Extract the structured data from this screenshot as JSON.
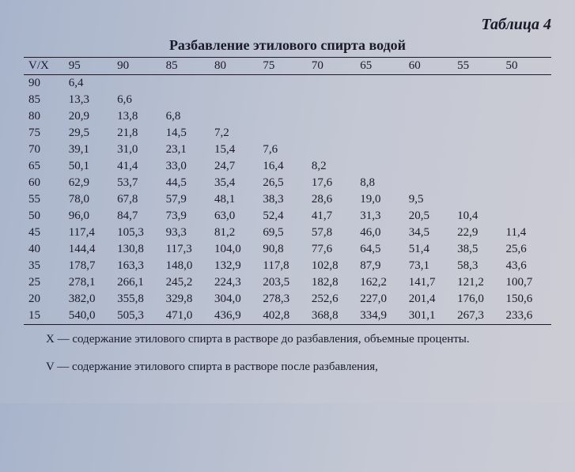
{
  "table_number": "Таблица 4",
  "title": "Разбавление этилового спирта водой",
  "corner_label": "V/X",
  "columns": [
    "95",
    "90",
    "85",
    "80",
    "75",
    "70",
    "65",
    "60",
    "55",
    "50"
  ],
  "rows": [
    {
      "label": "90",
      "cells": [
        "6,4",
        "",
        "",
        "",
        "",
        "",
        "",
        "",
        "",
        ""
      ]
    },
    {
      "label": "85",
      "cells": [
        "13,3",
        "6,6",
        "",
        "",
        "",
        "",
        "",
        "",
        "",
        ""
      ]
    },
    {
      "label": "80",
      "cells": [
        "20,9",
        "13,8",
        "6,8",
        "",
        "",
        "",
        "",
        "",
        "",
        ""
      ]
    },
    {
      "label": "75",
      "cells": [
        "29,5",
        "21,8",
        "14,5",
        "7,2",
        "",
        "",
        "",
        "",
        "",
        ""
      ]
    },
    {
      "label": "70",
      "cells": [
        "39,1",
        "31,0",
        "23,1",
        "15,4",
        "7,6",
        "",
        "",
        "",
        "",
        ""
      ]
    },
    {
      "label": "65",
      "cells": [
        "50,1",
        "41,4",
        "33,0",
        "24,7",
        "16,4",
        "8,2",
        "",
        "",
        "",
        ""
      ]
    },
    {
      "label": "60",
      "cells": [
        "62,9",
        "53,7",
        "44,5",
        "35,4",
        "26,5",
        "17,6",
        "8,8",
        "",
        "",
        ""
      ]
    },
    {
      "label": "55",
      "cells": [
        "78,0",
        "67,8",
        "57,9",
        "48,1",
        "38,3",
        "28,6",
        "19,0",
        "9,5",
        "",
        ""
      ]
    },
    {
      "label": "50",
      "cells": [
        "96,0",
        "84,7",
        "73,9",
        "63,0",
        "52,4",
        "41,7",
        "31,3",
        "20,5",
        "10,4",
        ""
      ]
    },
    {
      "label": "45",
      "cells": [
        "117,4",
        "105,3",
        "93,3",
        "81,2",
        "69,5",
        "57,8",
        "46,0",
        "34,5",
        "22,9",
        "11,4"
      ]
    },
    {
      "label": "40",
      "cells": [
        "144,4",
        "130,8",
        "117,3",
        "104,0",
        "90,8",
        "77,6",
        "64,5",
        "51,4",
        "38,5",
        "25,6"
      ]
    },
    {
      "label": "35",
      "cells": [
        "178,7",
        "163,3",
        "148,0",
        "132,9",
        "117,8",
        "102,8",
        "87,9",
        "73,1",
        "58,3",
        "43,6"
      ]
    },
    {
      "label": "25",
      "cells": [
        "278,1",
        "266,1",
        "245,2",
        "224,3",
        "203,5",
        "182,8",
        "162,2",
        "141,7",
        "121,2",
        "100,7"
      ]
    },
    {
      "label": "20",
      "cells": [
        "382,0",
        "355,8",
        "329,8",
        "304,0",
        "278,3",
        "252,6",
        "227,0",
        "201,4",
        "176,0",
        "150,6"
      ]
    },
    {
      "label": "15",
      "cells": [
        "540,0",
        "505,3",
        "471,0",
        "436,9",
        "402,8",
        "368,8",
        "334,9",
        "301,1",
        "267,3",
        "233,6"
      ]
    }
  ],
  "footnote_x": "X — содержание этилового спирта в растворе до разбавления, объемные проценты.",
  "footnote_v": "V — содержание этилового спирта в растворе после разбавления,"
}
